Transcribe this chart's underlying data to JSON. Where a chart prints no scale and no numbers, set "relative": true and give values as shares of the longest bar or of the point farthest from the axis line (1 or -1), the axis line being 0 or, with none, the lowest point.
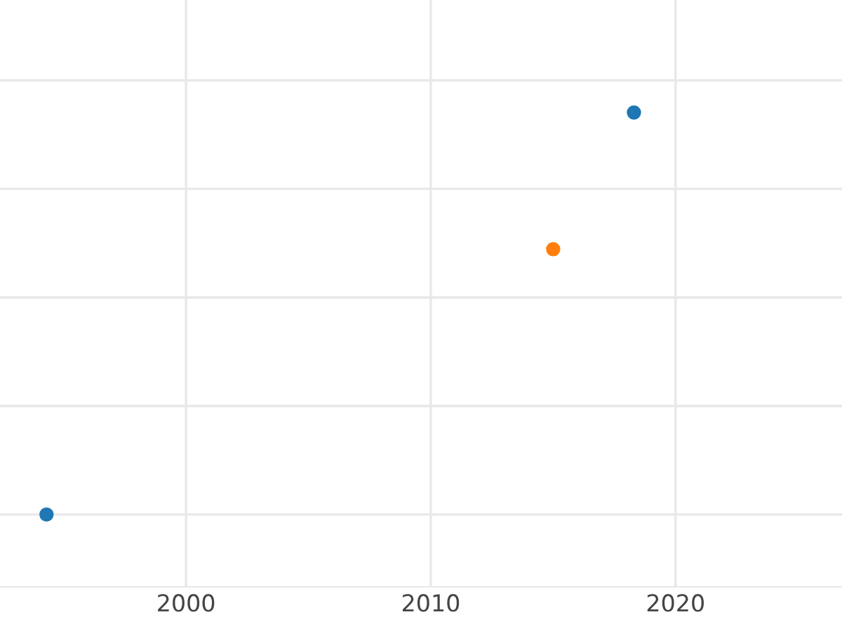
{
  "chart_data": {
    "type": "scatter",
    "relative": true,
    "series": [
      {
        "color": "#1f77b4",
        "x": [
          1994.3,
          2018.3
        ],
        "values": [
          0,
          1
        ]
      },
      {
        "color": "#ff7f0e",
        "x": [
          2015.0
        ],
        "values": [
          0.66
        ]
      }
    ],
    "xlim": [
      1992.4,
      2026.8
    ],
    "xticks": [
      2000,
      2010,
      2020
    ],
    "grid": true,
    "tick_labels": "x",
    "marker": "circle"
  }
}
